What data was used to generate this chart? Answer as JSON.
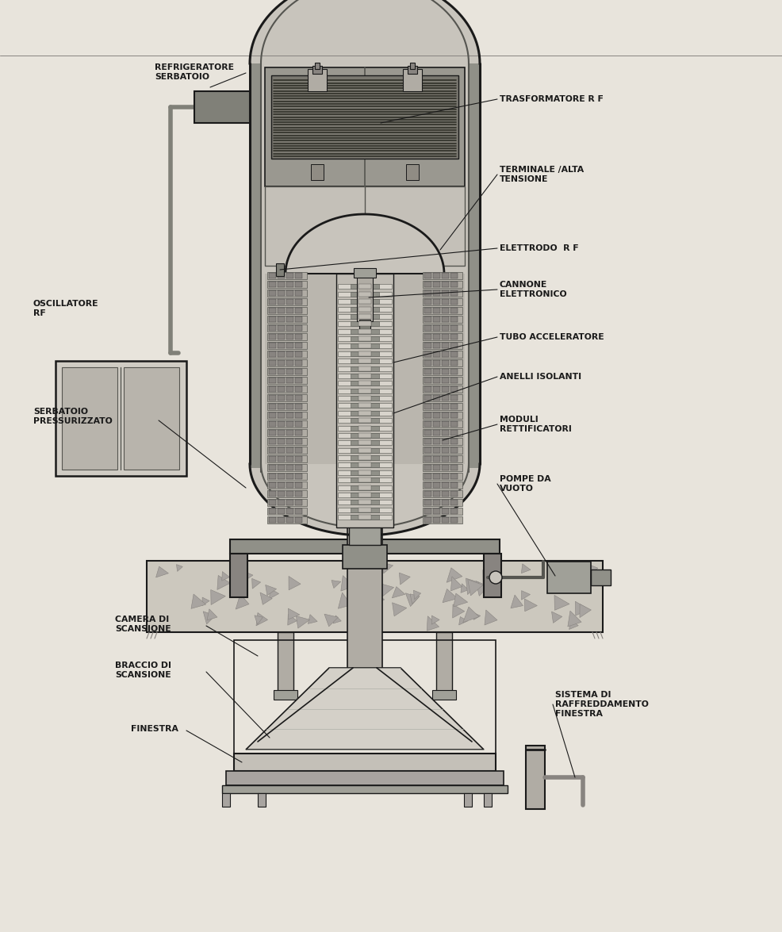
{
  "bg_color": "#e8e4dc",
  "line_color": "#1a1a1a",
  "vessel_fc": "#c8c4bc",
  "inner_fc": "#b0aca4",
  "dark_fc": "#888480",
  "mid_fc": "#a8a4a0",
  "light_fc": "#d4d0c8",
  "concrete_fc": "#ccc8be",
  "label_fontsize": 7.8,
  "labels": {
    "refrigeratore_serbatoio": "REFRIGERATORE\nSERBATOIO",
    "trasformatore_rf": "TRASFORMATORE R F",
    "terminale_alta_tensione": "TERMINALE /ALTA\nTENSIONE",
    "elettrodo_rf": "ELETTRODO  R F",
    "cannone_elettronico": "CANNONE\nELETTRONICO",
    "tubo_acceleratore": "TUBO ACCELERATORE",
    "anelli_isolanti": "ANELLI ISOLANTI",
    "moduli_rettificatori": "MODULI\nRETTIFICATORI",
    "pompe_da_vuoto": "POMPE DA\nVUOTO",
    "oscillatore_rf": "OSCILLATORE\nRF",
    "serbatoio_pressurizzato": "SERBATOIO\nPRESSURIZZATO",
    "camera_di_scansione": "CAMERA DI\nSCANSIONE",
    "braccio_di_scansione": "BRACCIO DI\nSCANSIONE",
    "finestra": "FINESTRA",
    "sistema_raffreddamento": "SISTEMA DI\nRAFFREDDAMENTO\nFINESTRA"
  }
}
